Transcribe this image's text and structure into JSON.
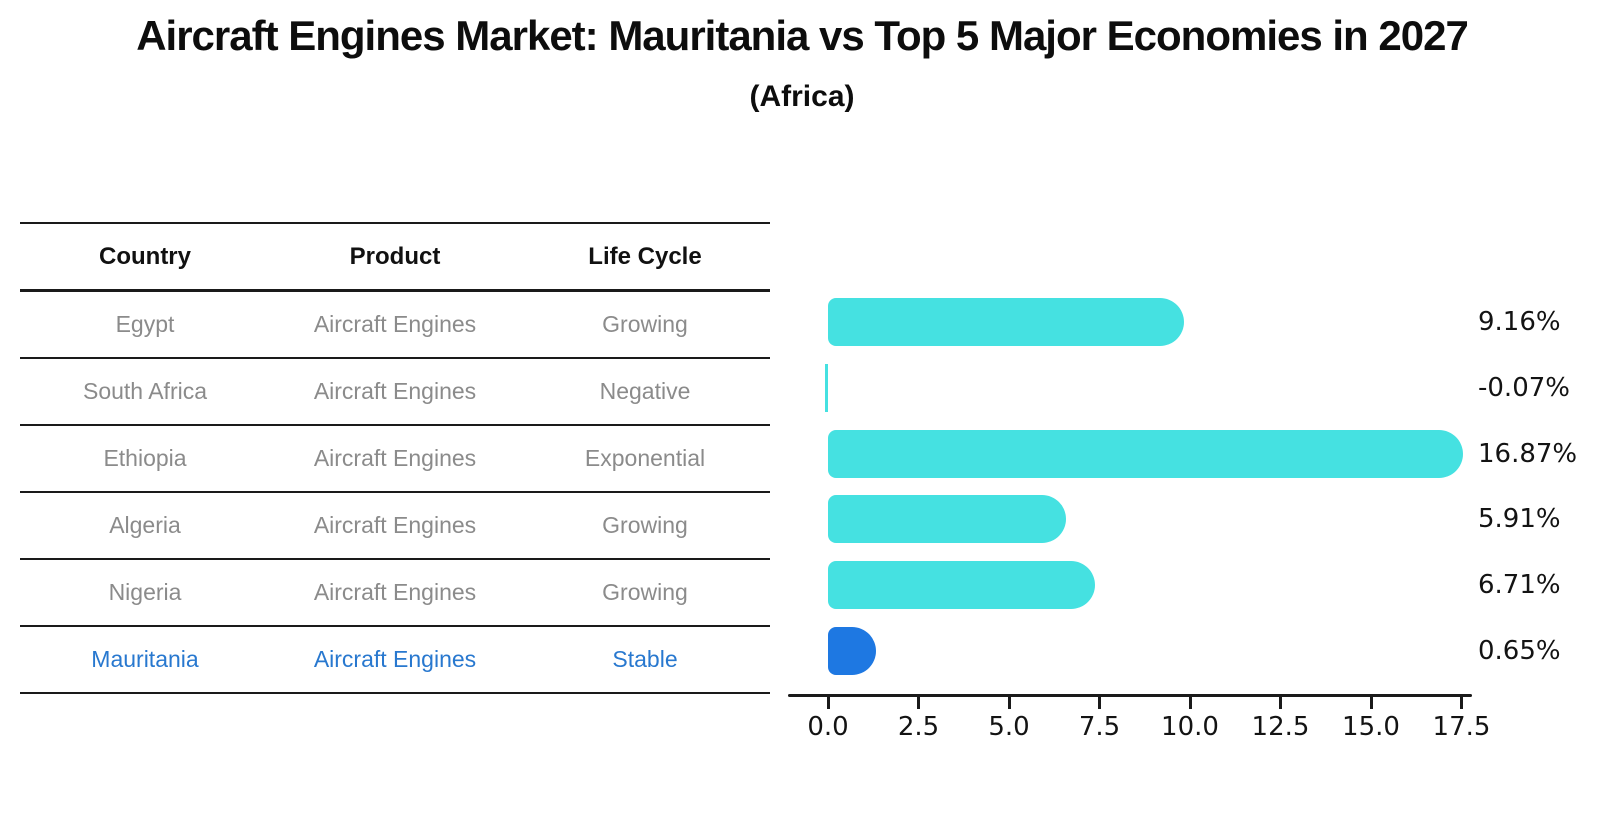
{
  "chart_data": {
    "type": "bar",
    "orientation": "horizontal",
    "title": "Aircraft Engines Market: Mauritania vs Top 5 Major Economies in 2027",
    "subtitle": "(Africa)",
    "categories": [
      "Egypt",
      "South Africa",
      "Ethiopia",
      "Algeria",
      "Nigeria",
      "Mauritania"
    ],
    "values": [
      9.16,
      -0.07,
      16.87,
      5.91,
      6.71,
      0.65
    ],
    "value_labels": [
      "9.16%",
      "-0.07%",
      "16.87%",
      "5.91%",
      "6.71%",
      "0.65%"
    ],
    "highlight_index": 5,
    "highlight_country": "Mauritania",
    "xticks": [
      0.0,
      2.5,
      5.0,
      7.5,
      10.0,
      12.5,
      15.0,
      17.5
    ],
    "xtick_labels": [
      "0.0",
      "2.5",
      "5.0",
      "7.5",
      "10.0",
      "12.5",
      "15.0",
      "17.5"
    ],
    "xlim": [
      0,
      17.5
    ],
    "grid": false,
    "legend": "none"
  },
  "table": {
    "columns": [
      "Country",
      "Product",
      "Life Cycle"
    ],
    "rows": [
      {
        "country": "Egypt",
        "product": "Aircraft Engines",
        "life_cycle": "Growing",
        "highlight": false
      },
      {
        "country": "South Africa",
        "product": "Aircraft Engines",
        "life_cycle": "Negative",
        "highlight": false
      },
      {
        "country": "Ethiopia",
        "product": "Aircraft Engines",
        "life_cycle": "Exponential",
        "highlight": false
      },
      {
        "country": "Algeria",
        "product": "Aircraft Engines",
        "life_cycle": "Growing",
        "highlight": false
      },
      {
        "country": "Nigeria",
        "product": "Aircraft Engines",
        "life_cycle": "Growing",
        "highlight": false
      },
      {
        "country": "Mauritania",
        "product": "Aircraft Engines",
        "life_cycle": "Stable",
        "highlight": true
      }
    ]
  },
  "colors": {
    "bar": "#45e1e1",
    "highlight_bar": "#1e78e2",
    "highlight_text": "#2878cf",
    "row_text": "#8b8b8b",
    "axis": "#1a1a1a",
    "label_text": "#131313"
  }
}
